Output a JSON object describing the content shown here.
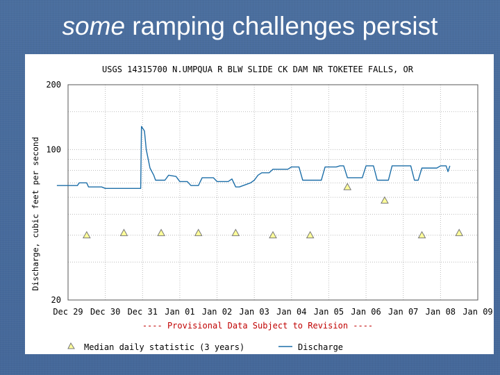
{
  "slide": {
    "title_emphasis": "some",
    "title_rest": " ramping challenges persist"
  },
  "chart_data": {
    "type": "line",
    "title": "USGS 14315700 N.UMPQUA R BLW SLIDE CK DAM NR TOKETEE FALLS, OR",
    "ylabel": "Discharge, cubic feet per second",
    "xlabel": "",
    "ylim": [
      20,
      200
    ],
    "y_scale": "log",
    "grid": true,
    "y_ticks": [
      {
        "value": 200,
        "label": "200"
      },
      {
        "value": 100,
        "label": "100"
      },
      {
        "value": 20,
        "label": "20"
      }
    ],
    "x_ticks": [
      "Dec 29",
      "Dec 30",
      "Dec 31",
      "Jan 01",
      "Jan 02",
      "Jan 03",
      "Jan 04",
      "Jan 05",
      "Jan 06",
      "Jan 07",
      "Jan 08",
      "Jan 09"
    ],
    "x_range_days": [
      0,
      11
    ],
    "note": "---- Provisional Data Subject to Revision ----",
    "legend": {
      "position": "bottom",
      "median_label": "Median daily statistic (3 years)",
      "discharge_label": "Discharge"
    },
    "colors": {
      "discharge": "#1c6ea8",
      "median_fill": "#ffff99",
      "median_stroke": "#777777",
      "note": "#c00000"
    },
    "series": [
      {
        "name": "Discharge",
        "x": [
          -0.3,
          0.25,
          0.3,
          0.5,
          0.55,
          0.9,
          1.0,
          1.6,
          1.95,
          1.97,
          2.05,
          2.1,
          2.2,
          2.3,
          2.35,
          2.6,
          2.7,
          2.9,
          3.0,
          3.2,
          3.3,
          3.5,
          3.6,
          3.9,
          4.0,
          4.3,
          4.4,
          4.5,
          4.6,
          4.9,
          5.0,
          5.1,
          5.2,
          5.4,
          5.5,
          5.9,
          6.0,
          6.2,
          6.3,
          6.8,
          6.9,
          7.2,
          7.3,
          7.4,
          7.5,
          7.9,
          8.0,
          8.2,
          8.3,
          8.6,
          8.7,
          9.2,
          9.3,
          9.4,
          9.5,
          9.9,
          10.0,
          10.15,
          10.2,
          10.25
        ],
        "y": [
          68,
          68,
          70,
          70,
          67,
          67,
          66,
          66,
          66,
          128,
          122,
          100,
          82,
          76,
          72,
          72,
          76,
          75,
          71,
          71,
          68,
          68,
          74,
          74,
          71,
          71,
          73,
          67,
          67,
          70,
          72,
          76,
          78,
          78,
          81,
          81,
          83,
          83,
          72,
          72,
          83,
          83,
          84,
          84,
          74,
          74,
          84,
          84,
          72,
          72,
          84,
          84,
          72,
          72,
          82,
          82,
          84,
          84,
          79,
          84
        ]
      },
      {
        "name": "Median daily statistic (3 years)",
        "x": [
          0.5,
          1.5,
          2.5,
          3.5,
          4.5,
          5.5,
          6.5,
          7.5,
          8.5,
          9.5,
          10.5
        ],
        "y": [
          40,
          41,
          41,
          41,
          41,
          40,
          40,
          67,
          58,
          40,
          41
        ]
      }
    ]
  }
}
